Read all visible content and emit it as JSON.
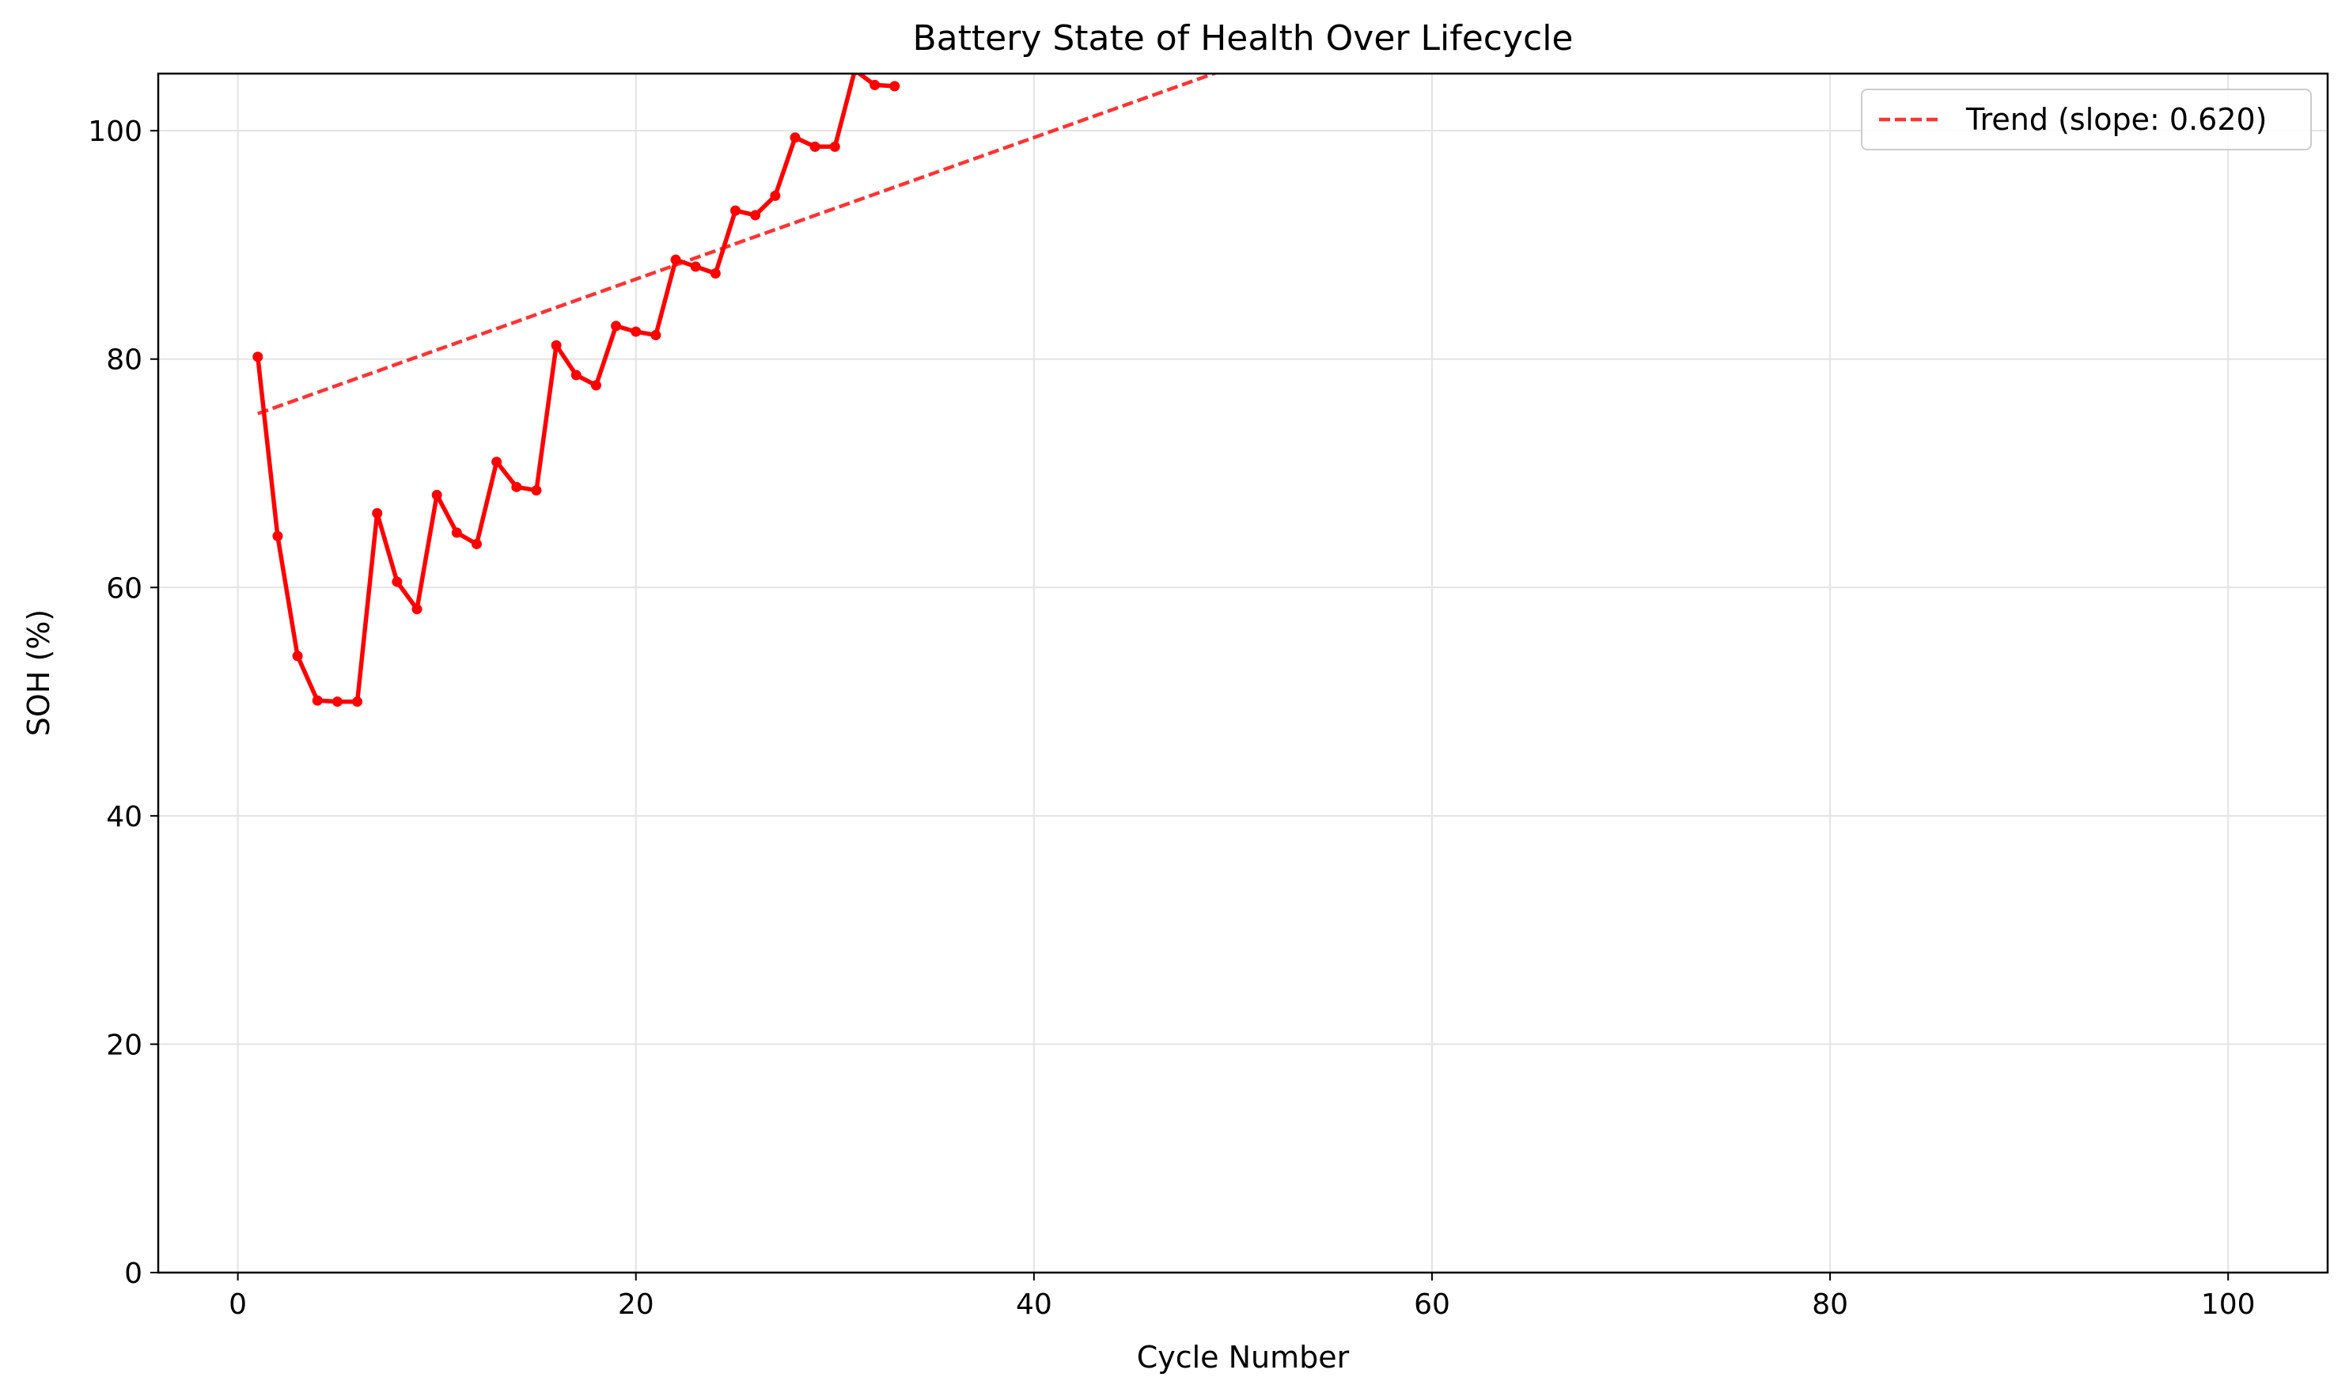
{
  "chart_data": {
    "type": "line",
    "title": "Battery State of Health Over Lifecycle",
    "xlabel": "Cycle Number",
    "ylabel": "SOH (%)",
    "xlim": [
      -4,
      105
    ],
    "ylim": [
      0,
      105
    ],
    "xticks": [
      0,
      20,
      40,
      60,
      80,
      100
    ],
    "yticks": [
      0,
      20,
      40,
      60,
      80,
      100
    ],
    "grid": true,
    "legend_position": "top-right",
    "series": [
      {
        "kind": "data",
        "color": "#ff0000",
        "x": [
          1,
          2,
          3,
          4,
          5,
          6,
          7,
          8,
          9,
          10,
          11,
          12,
          13,
          14,
          15,
          16,
          17,
          18,
          19,
          20,
          21,
          22,
          23,
          24,
          25,
          26,
          27,
          28,
          29,
          30,
          31,
          32,
          33
        ],
        "y": [
          80.2,
          64.5,
          54.0,
          50.1,
          50.0,
          50.0,
          66.5,
          60.5,
          58.1,
          68.1,
          64.8,
          63.8,
          71.0,
          68.8,
          68.5,
          81.2,
          78.6,
          77.7,
          82.9,
          82.4,
          82.1,
          88.7,
          88.1,
          87.5,
          93.0,
          92.6,
          94.3,
          99.4,
          98.6,
          98.6,
          105.3,
          104.0,
          103.9
        ]
      },
      {
        "kind": "trend",
        "name": "Trend (slope: 0.620)",
        "color": "#ff0000",
        "dashed": true,
        "slope": 0.62,
        "intercept": 74.6,
        "x_range": [
          1,
          49.6
        ]
      }
    ]
  }
}
